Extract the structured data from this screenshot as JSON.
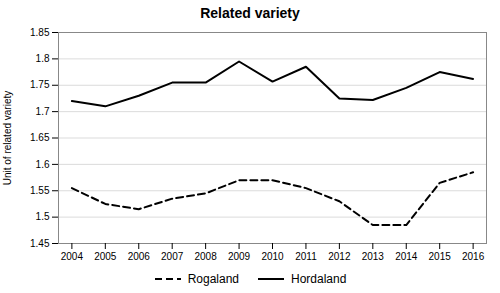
{
  "chart_data": {
    "type": "line",
    "title": "Related variety",
    "ylabel": "Unit of related variety",
    "x": [
      2004,
      2005,
      2006,
      2007,
      2008,
      2009,
      2010,
      2011,
      2012,
      2013,
      2014,
      2015,
      2016
    ],
    "series": [
      {
        "name": "Rogaland",
        "color": "#000000",
        "line_style": "dashed",
        "values": [
          1.555,
          1.525,
          1.515,
          1.535,
          1.545,
          1.57,
          1.57,
          1.555,
          1.53,
          1.485,
          1.485,
          1.565,
          1.585
        ]
      },
      {
        "name": "Hordaland",
        "color": "#000000",
        "line_style": "solid",
        "values": [
          1.72,
          1.71,
          1.73,
          1.755,
          1.755,
          1.795,
          1.757,
          1.785,
          1.725,
          1.722,
          1.745,
          1.775,
          1.762
        ]
      }
    ],
    "xlim": [
      2003.6,
      2016.4
    ],
    "xticks": [
      2004,
      2005,
      2006,
      2007,
      2008,
      2009,
      2010,
      2011,
      2012,
      2013,
      2014,
      2015,
      2016
    ],
    "ylim": [
      1.45,
      1.85
    ],
    "yticks": [
      1.45,
      1.5,
      1.55,
      1.6,
      1.65,
      1.7,
      1.75,
      1.8,
      1.85
    ],
    "grid": true,
    "legend": "bottom"
  }
}
